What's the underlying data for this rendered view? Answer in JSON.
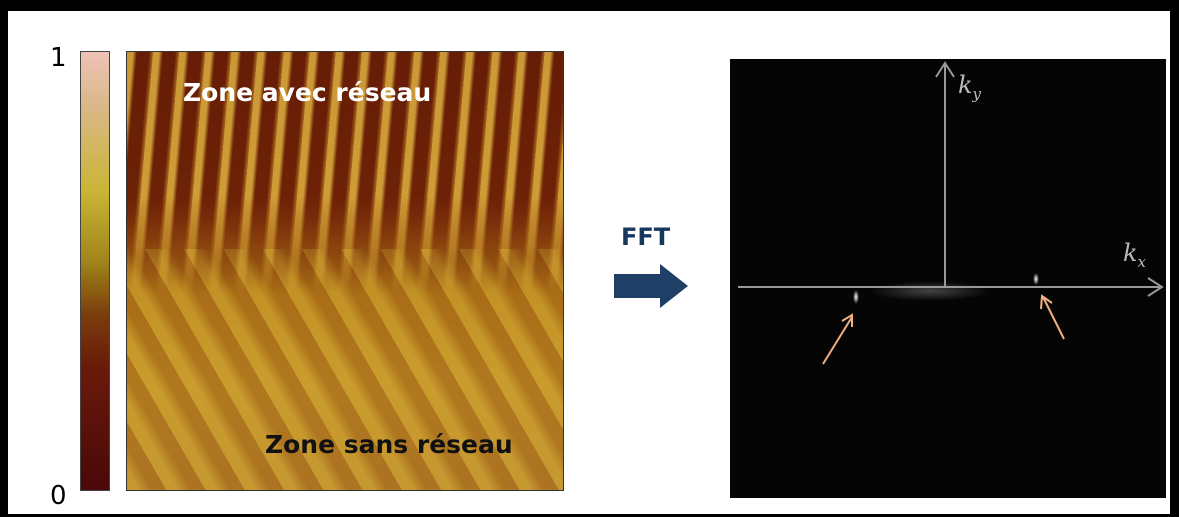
{
  "colorbar": {
    "max_label": "1",
    "min_label": "0"
  },
  "afm_image": {
    "top_label": "Zone avec réseau",
    "bottom_label": "Zone sans réseau"
  },
  "transform_label": "FFT",
  "fft_image": {
    "ky_label": {
      "base": "k",
      "sub": "y"
    },
    "kx_label": {
      "base": "k",
      "sub": "x"
    }
  }
}
